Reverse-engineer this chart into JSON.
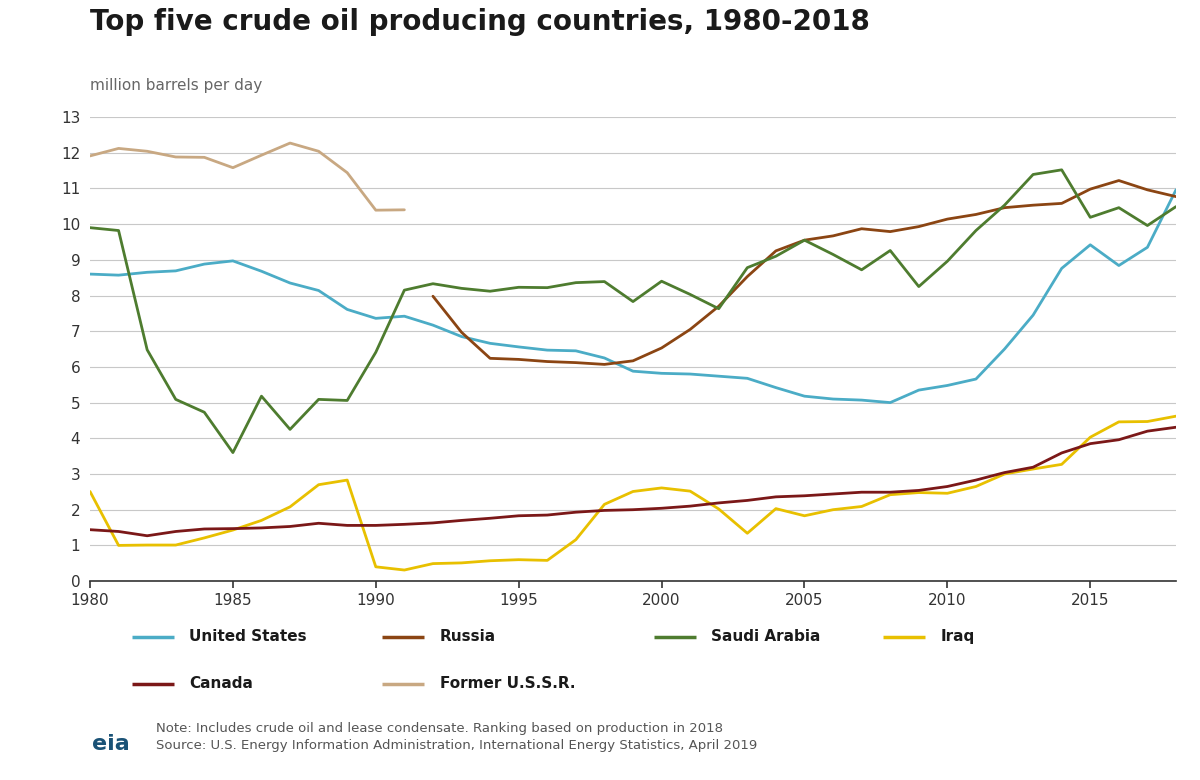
{
  "title": "Top five crude oil producing countries, 1980-2018",
  "ylabel": "million barrels per day",
  "xlim": [
    1980,
    2018
  ],
  "ylim": [
    0,
    13
  ],
  "yticks": [
    0,
    1,
    2,
    3,
    4,
    5,
    6,
    7,
    8,
    9,
    10,
    11,
    12,
    13
  ],
  "xticks": [
    1980,
    1985,
    1990,
    1995,
    2000,
    2005,
    2010,
    2015
  ],
  "note": "Note: Includes crude oil and lease condensate. Ranking based on production in 2018",
  "source": "Source: U.S. Energy Information Administration, International Energy Statistics, April 2019",
  "series": {
    "United States": {
      "color": "#4bacc6",
      "linewidth": 2.0,
      "data": {
        "1980": 8.6,
        "1981": 8.57,
        "1982": 8.65,
        "1983": 8.69,
        "1984": 8.88,
        "1985": 8.97,
        "1986": 8.68,
        "1987": 8.35,
        "1988": 8.14,
        "1989": 7.61,
        "1990": 7.36,
        "1991": 7.42,
        "1992": 7.17,
        "1993": 6.85,
        "1994": 6.66,
        "1995": 6.56,
        "1996": 6.47,
        "1997": 6.45,
        "1998": 6.25,
        "1999": 5.88,
        "2000": 5.82,
        "2001": 5.8,
        "2002": 5.74,
        "2003": 5.68,
        "2004": 5.42,
        "2005": 5.18,
        "2006": 5.1,
        "2007": 5.07,
        "2008": 5.0,
        "2009": 5.35,
        "2010": 5.48,
        "2011": 5.66,
        "2012": 6.5,
        "2013": 7.45,
        "2014": 8.76,
        "2015": 9.42,
        "2016": 8.84,
        "2017": 9.35,
        "2018": 10.96
      }
    },
    "Russia": {
      "color": "#8B4513",
      "linewidth": 2.0,
      "data": {
        "1992": 7.98,
        "1993": 6.97,
        "1994": 6.24,
        "1995": 6.21,
        "1996": 6.15,
        "1997": 6.12,
        "1998": 6.07,
        "1999": 6.17,
        "2000": 6.53,
        "2001": 7.05,
        "2002": 7.7,
        "2003": 8.53,
        "2004": 9.25,
        "2005": 9.55,
        "2006": 9.67,
        "2007": 9.87,
        "2008": 9.79,
        "2009": 9.93,
        "2010": 10.14,
        "2011": 10.27,
        "2012": 10.46,
        "2013": 10.53,
        "2014": 10.58,
        "2015": 10.98,
        "2016": 11.22,
        "2017": 10.96,
        "2018": 10.77
      }
    },
    "Saudi Arabia": {
      "color": "#4e7c2f",
      "linewidth": 2.0,
      "data": {
        "1980": 9.9,
        "1981": 9.82,
        "1982": 6.48,
        "1983": 5.09,
        "1984": 4.73,
        "1985": 3.6,
        "1986": 5.18,
        "1987": 4.25,
        "1988": 5.09,
        "1989": 5.06,
        "1990": 6.41,
        "1991": 8.15,
        "1992": 8.33,
        "1993": 8.2,
        "1994": 8.12,
        "1995": 8.23,
        "1996": 8.22,
        "1997": 8.36,
        "1998": 8.39,
        "1999": 7.83,
        "2000": 8.4,
        "2001": 8.03,
        "2002": 7.63,
        "2003": 8.78,
        "2004": 9.1,
        "2005": 9.55,
        "2006": 9.15,
        "2007": 8.72,
        "2008": 9.26,
        "2009": 8.25,
        "2010": 8.96,
        "2011": 9.82,
        "2012": 10.53,
        "2013": 11.39,
        "2014": 11.52,
        "2015": 10.19,
        "2016": 10.46,
        "2017": 9.96,
        "2018": 10.49
      }
    },
    "Iraq": {
      "color": "#e8c000",
      "linewidth": 2.0,
      "data": {
        "1980": 2.51,
        "1981": 1.0,
        "1982": 1.01,
        "1983": 1.01,
        "1984": 1.21,
        "1985": 1.43,
        "1986": 1.7,
        "1987": 2.08,
        "1988": 2.7,
        "1989": 2.83,
        "1990": 0.4,
        "1991": 0.31,
        "1992": 0.49,
        "1993": 0.51,
        "1994": 0.57,
        "1995": 0.6,
        "1996": 0.58,
        "1997": 1.16,
        "1998": 2.15,
        "1999": 2.51,
        "2000": 2.61,
        "2001": 2.52,
        "2002": 2.02,
        "2003": 1.34,
        "2004": 2.03,
        "2005": 1.83,
        "2006": 2.0,
        "2007": 2.09,
        "2008": 2.42,
        "2009": 2.48,
        "2010": 2.46,
        "2011": 2.65,
        "2012": 3.0,
        "2013": 3.14,
        "2014": 3.27,
        "2015": 4.03,
        "2016": 4.46,
        "2017": 4.47,
        "2018": 4.62
      }
    },
    "Canada": {
      "color": "#7B1818",
      "linewidth": 2.0,
      "data": {
        "1980": 1.44,
        "1981": 1.39,
        "1982": 1.27,
        "1983": 1.39,
        "1984": 1.46,
        "1985": 1.47,
        "1986": 1.49,
        "1987": 1.53,
        "1988": 1.62,
        "1989": 1.56,
        "1990": 1.56,
        "1991": 1.59,
        "1992": 1.63,
        "1993": 1.7,
        "1994": 1.76,
        "1995": 1.83,
        "1996": 1.85,
        "1997": 1.93,
        "1998": 1.98,
        "1999": 2.0,
        "2000": 2.04,
        "2001": 2.1,
        "2002": 2.19,
        "2003": 2.26,
        "2004": 2.36,
        "2005": 2.39,
        "2006": 2.44,
        "2007": 2.49,
        "2008": 2.49,
        "2009": 2.54,
        "2010": 2.65,
        "2011": 2.83,
        "2012": 3.04,
        "2013": 3.19,
        "2014": 3.59,
        "2015": 3.85,
        "2016": 3.96,
        "2017": 4.2,
        "2018": 4.31
      }
    },
    "Former U.S.S.R.": {
      "color": "#c8a882",
      "linewidth": 2.0,
      "data": {
        "1980": 11.91,
        "1981": 12.12,
        "1982": 12.04,
        "1983": 11.88,
        "1984": 11.87,
        "1985": 11.58,
        "1986": 11.93,
        "1987": 12.27,
        "1988": 12.04,
        "1989": 11.44,
        "1990": 10.39,
        "1991": 10.4
      }
    }
  },
  "background_color": "#ffffff",
  "plot_bg_color": "#ffffff",
  "grid_color": "#c8c8c8",
  "legend_bg": "#e8e8e8",
  "title_fontsize": 20,
  "label_fontsize": 11,
  "tick_fontsize": 11,
  "legend_fontsize": 11
}
